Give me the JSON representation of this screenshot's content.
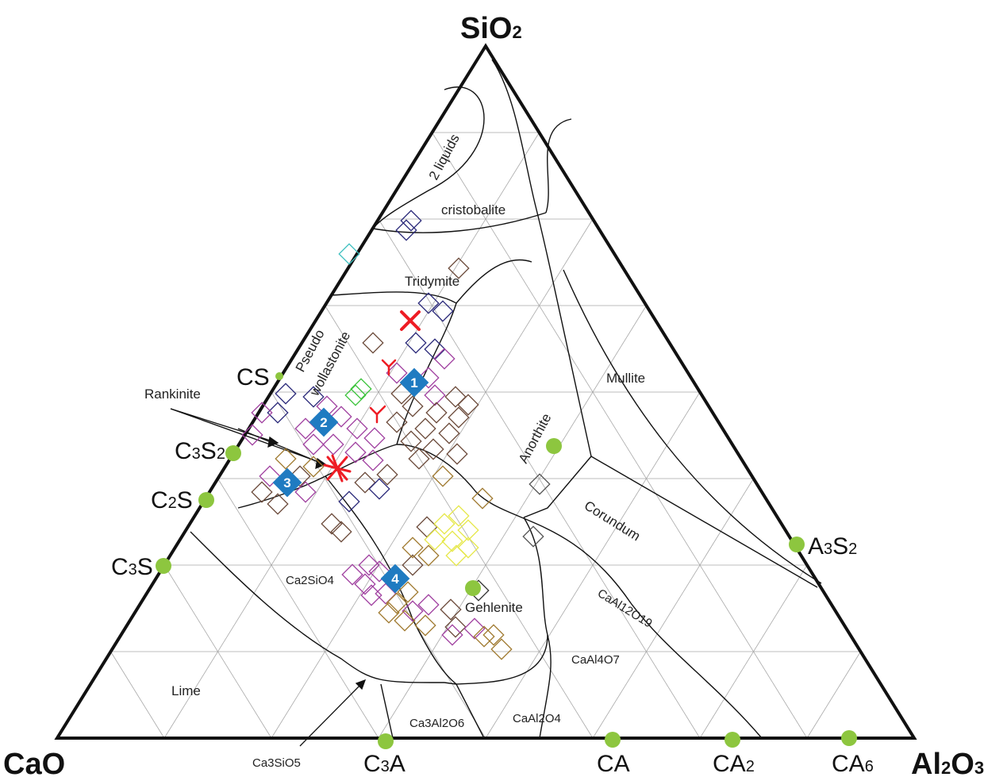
{
  "diagram": {
    "vertices": {
      "top": "SiO2",
      "left": "CaO",
      "right": "Al2O3"
    },
    "compounds": [
      {
        "id": "CS",
        "label": "CS",
        "color": "#8dc63f"
      },
      {
        "id": "C3S2",
        "label": "C3S2",
        "color": "#8dc63f"
      },
      {
        "id": "C2S",
        "label": "C2S",
        "color": "#8dc63f"
      },
      {
        "id": "C3S",
        "label": "C3S",
        "color": "#8dc63f"
      },
      {
        "id": "C3A",
        "label": "C3A",
        "color": "#8dc63f"
      },
      {
        "id": "CA",
        "label": "CA",
        "color": "#8dc63f"
      },
      {
        "id": "CA2",
        "label": "CA2",
        "color": "#8dc63f"
      },
      {
        "id": "CA6",
        "label": "CA6",
        "color": "#8dc63f"
      },
      {
        "id": "A3S2",
        "label": "A3S2",
        "color": "#8dc63f"
      },
      {
        "id": "anorthite",
        "label": "",
        "color": "#8dc63f"
      },
      {
        "id": "gehlenite",
        "label": "",
        "color": "#8dc63f"
      }
    ],
    "regions": [
      {
        "id": "2liquids",
        "label": "2 liquids"
      },
      {
        "id": "cristobalite",
        "label": "cristobalite"
      },
      {
        "id": "tridymite",
        "label": "Tridymite"
      },
      {
        "id": "pseudo",
        "label": "Pseudo"
      },
      {
        "id": "wollastonite",
        "label": "wollastonite"
      },
      {
        "id": "rankinite",
        "label": "Rankinite"
      },
      {
        "id": "mullite",
        "label": "Mullite"
      },
      {
        "id": "anorthite",
        "label": "Anorthite"
      },
      {
        "id": "corundum",
        "label": "Corundum"
      },
      {
        "id": "ca2sio4",
        "label": "Ca2SiO4"
      },
      {
        "id": "gehlenite",
        "label": "Gehlenite"
      },
      {
        "id": "caal12o19",
        "label": "CaAl12O19"
      },
      {
        "id": "caal4o7",
        "label": "CaAl4O7"
      },
      {
        "id": "lime",
        "label": "Lime"
      },
      {
        "id": "ca3al2o6",
        "label": "Ca3Al2O6"
      },
      {
        "id": "caal2o4",
        "label": "CaAl2O4"
      },
      {
        "id": "ca3sio5",
        "label": "Ca3SiO5"
      }
    ],
    "numbered_markers": [
      "1",
      "2",
      "3",
      "4"
    ],
    "marker_color": "#1f7bc1",
    "cross_color": "#ee1c24"
  }
}
